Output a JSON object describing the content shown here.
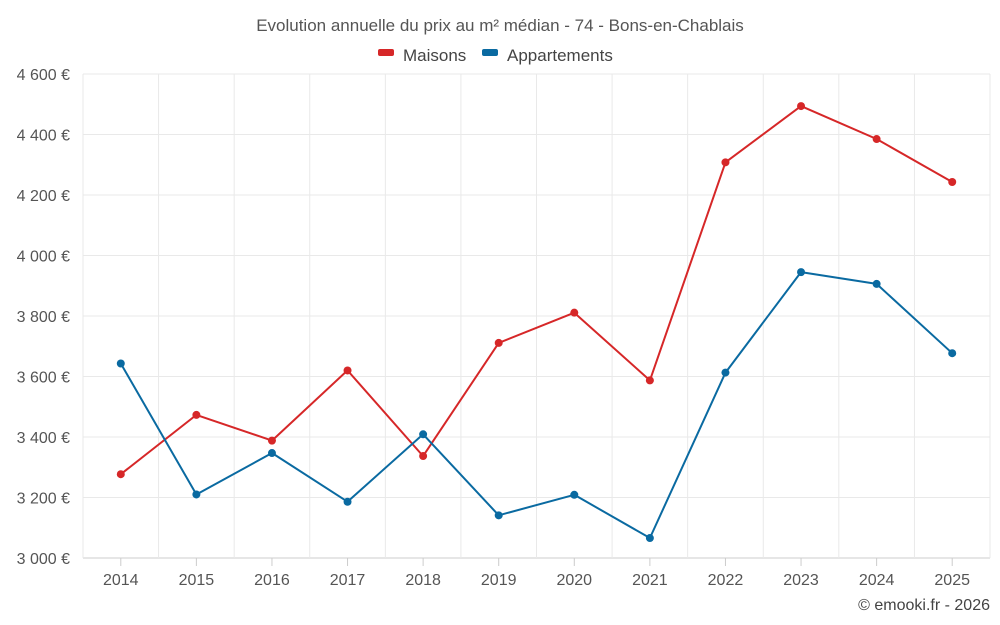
{
  "chart_data": {
    "type": "line",
    "title": "Evolution annuelle du prix au m² médian - 74 - Bons-en-Chablais",
    "categories": [
      "2014",
      "2015",
      "2016",
      "2017",
      "2018",
      "2019",
      "2020",
      "2021",
      "2022",
      "2023",
      "2024",
      "2025"
    ],
    "series": [
      {
        "name": "Maisons",
        "color": "#d62728",
        "values": [
          3277,
          3473,
          3388,
          3620,
          3337,
          3711,
          3811,
          3587,
          4308,
          4494,
          4385,
          4243
        ]
      },
      {
        "name": "Appartements",
        "color": "#0a6aa1",
        "values": [
          3643,
          3210,
          3347,
          3186,
          3409,
          3141,
          3209,
          3066,
          3613,
          3945,
          3906,
          3677
        ]
      }
    ],
    "ylim": [
      3000,
      4600
    ],
    "ytick_values": [
      3000,
      3200,
      3400,
      3600,
      3800,
      4000,
      4200,
      4400,
      4600
    ],
    "ytick_labels": [
      "3 000 €",
      "3 200 €",
      "3 400 €",
      "3 600 €",
      "3 800 €",
      "4 000 €",
      "4 200 €",
      "4 400 €",
      "4 600 €"
    ],
    "xlabel": "",
    "ylabel": "",
    "legend_position": "top-center",
    "grid": true
  },
  "credit": "© emooki.fr - 2026"
}
